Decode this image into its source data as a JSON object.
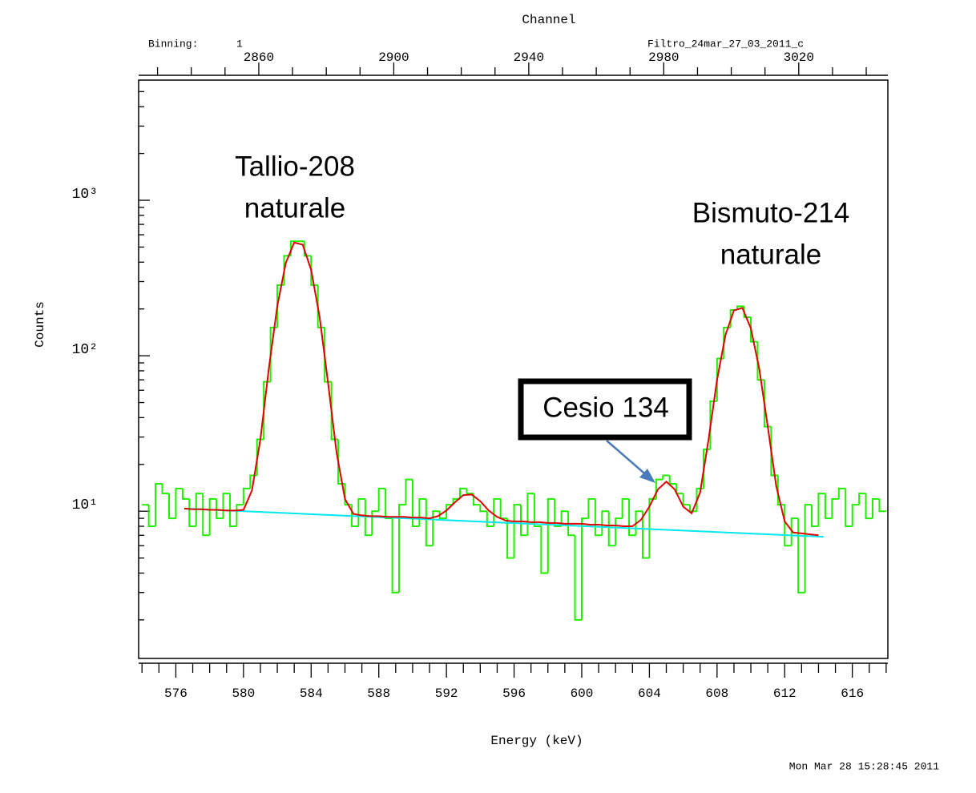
{
  "chart_data": {
    "type": "histogram",
    "title": "Channel",
    "binning_label": "Binning:",
    "binning_value": "1",
    "file_name": "Filtro_24mar_27_03_2011_c",
    "ylabel": "Counts",
    "xlabel": "Energy (keV)",
    "timestamp": "Mon Mar 28 15:28:45 2011",
    "log_y": true,
    "color": "#22ee00",
    "xlim": [
      573.8,
      618.1
    ],
    "x2lim": [
      2824.4,
      3046.4
    ],
    "ylim": [
      1.13,
      5930
    ],
    "xticks": [
      576,
      580,
      584,
      588,
      592,
      596,
      600,
      604,
      608,
      612,
      616
    ],
    "xminorticks": [
      574,
      575,
      577,
      578,
      579,
      581,
      582,
      583,
      585,
      586,
      587,
      589,
      590,
      591,
      593,
      594,
      595,
      597,
      598,
      599,
      601,
      602,
      603,
      605,
      606,
      607,
      609,
      610,
      611,
      613,
      614,
      615,
      617,
      618
    ],
    "x2ticks": [
      2860,
      2900,
      2940,
      2980,
      3020
    ],
    "x2minorticks": [
      2830,
      2840,
      2850,
      2870,
      2880,
      2890,
      2910,
      2920,
      2930,
      2950,
      2960,
      2970,
      2990,
      3000,
      3010,
      3030,
      3040
    ],
    "yticks": [
      {
        "value": 10,
        "label": "10¹"
      },
      {
        "value": 100,
        "label": "10²"
      },
      {
        "value": 1000,
        "label": "10³"
      }
    ],
    "yminorticks": [
      2,
      3,
      4,
      5,
      6,
      7,
      8,
      9,
      20,
      30,
      40,
      50,
      60,
      70,
      80,
      90,
      200,
      300,
      400,
      500,
      600,
      700,
      800,
      900,
      2000,
      3000,
      4000,
      5000
    ],
    "bins": [
      574.0,
      574.4,
      574.8,
      575.2,
      575.6,
      576.0,
      576.4,
      576.8,
      577.2,
      577.6,
      578.0,
      578.4,
      578.8,
      579.2,
      579.6,
      580.0,
      580.4,
      580.8,
      581.2,
      581.6,
      582.0,
      582.4,
      582.8,
      583.2,
      583.6,
      584.0,
      584.4,
      584.8,
      585.2,
      585.6,
      586.0,
      586.4,
      586.8,
      587.2,
      587.6,
      588.0,
      588.4,
      588.8,
      589.2,
      589.6,
      590.0,
      590.4,
      590.8,
      591.2,
      591.6,
      592.0,
      592.4,
      592.8,
      593.2,
      593.6,
      594.0,
      594.4,
      594.8,
      595.2,
      595.6,
      596.0,
      596.4,
      596.8,
      597.2,
      597.6,
      598.0,
      598.4,
      598.8,
      599.2,
      599.6,
      600.0,
      600.4,
      600.8,
      601.2,
      601.6,
      602.0,
      602.4,
      602.8,
      603.2,
      603.6,
      604.0,
      604.4,
      604.8,
      605.2,
      605.6,
      606.0,
      606.4,
      606.8,
      607.2,
      607.6,
      608.0,
      608.4,
      608.8,
      609.2,
      609.6,
      610.0,
      610.4,
      610.8,
      611.2,
      611.6,
      612.0,
      612.4,
      612.8,
      613.2,
      613.6,
      614.0,
      614.4,
      614.8,
      615.2,
      615.6,
      616.0,
      616.4,
      616.8,
      617.2,
      617.6,
      618.0
    ],
    "values": [
      11,
      8,
      15,
      13,
      9,
      14,
      12,
      8,
      13,
      7,
      12,
      9,
      13,
      8,
      11,
      14,
      17,
      29,
      68,
      152,
      285,
      439,
      545,
      545,
      439,
      285,
      152,
      68,
      29,
      15,
      11,
      8,
      12,
      7,
      10,
      14,
      9,
      3,
      11,
      16,
      8,
      12,
      6,
      10,
      9,
      11,
      12,
      14,
      13,
      11,
      10,
      8,
      12,
      9,
      5,
      11,
      7,
      13,
      8,
      4,
      12,
      8,
      10,
      7,
      2,
      9,
      12,
      7,
      10,
      6,
      9,
      12,
      7,
      10,
      5,
      12,
      16,
      17,
      15,
      13,
      11,
      10,
      14,
      25,
      51,
      96,
      152,
      197,
      208,
      177,
      123,
      70,
      35,
      17,
      11,
      6,
      9,
      3,
      11,
      8,
      13,
      9,
      12,
      14,
      8,
      11,
      13,
      9,
      12,
      10
    ],
    "fit_lines": [
      {
        "color": "#00e8f0",
        "x": [
          576.5,
          614.3
        ],
        "values": [
          10.4,
          6.85
        ]
      },
      {
        "color": "#e00000",
        "x": [
          576.5,
          577,
          577.5,
          578,
          578.5,
          579,
          579.5,
          580,
          580.5,
          581,
          581.5,
          582,
          582.5,
          583,
          583.5,
          584,
          584.5,
          585,
          585.5,
          586,
          586.5,
          587,
          587.5,
          588,
          588.5,
          589,
          589.5,
          590,
          590.5,
          591,
          591.5,
          592,
          592.5,
          593,
          593.5,
          594,
          594.5,
          595,
          595.5,
          596,
          596.5,
          597,
          597.5,
          598,
          598.5,
          599,
          599.5,
          600,
          600.5,
          601,
          601.5,
          602,
          602.5,
          603,
          603.5,
          604,
          604.5,
          605,
          605.5,
          606,
          606.5,
          607,
          607.5,
          608,
          608.5,
          609,
          609.5,
          610,
          610.5,
          611,
          611.5,
          612,
          612.5,
          613,
          613.5,
          614
        ],
        "values": [
          10.4,
          10.3,
          10.3,
          10.2,
          10.2,
          10.1,
          10.1,
          10.2,
          13.6,
          29,
          83,
          209,
          395,
          535,
          518,
          357,
          178,
          67,
          24,
          12,
          9.6,
          9.4,
          9.3,
          9.3,
          9.2,
          9.2,
          9.2,
          9.1,
          9.1,
          9.0,
          9.3,
          10.1,
          11.4,
          12.7,
          12.8,
          11.6,
          10.1,
          9.2,
          8.7,
          8.6,
          8.6,
          8.5,
          8.5,
          8.4,
          8.4,
          8.3,
          8.3,
          8.3,
          8.2,
          8.2,
          8.1,
          8.1,
          8.0,
          8.0,
          8.8,
          10.7,
          13.8,
          15.5,
          13.8,
          10.7,
          9.7,
          13.2,
          29,
          70,
          136,
          196,
          203,
          150,
          82,
          35,
          14.5,
          8.6,
          7.3,
          7.2,
          7.1,
          7.0
        ]
      }
    ],
    "annotations": [
      {
        "lines": [
          "Tallio-208",
          "naturale"
        ]
      },
      {
        "lines": [
          "Bismuto-214",
          "naturale"
        ]
      },
      {
        "lines": [
          "Cesio 134"
        ],
        "boxed": true
      }
    ]
  }
}
